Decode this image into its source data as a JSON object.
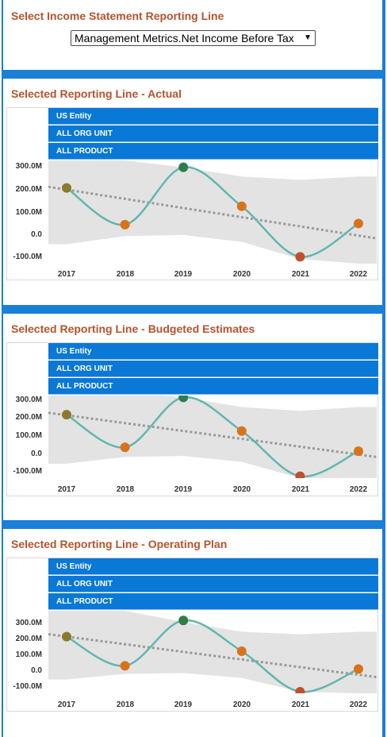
{
  "selector": {
    "title": "Select Income Statement Reporting Line",
    "selected_value": "Management Metrics.Net Income Before Tax"
  },
  "panels": [
    {
      "title": "Selected Reporting Line - Actual",
      "headers": [
        "US Entity",
        "ALL ORG UNIT",
        "ALL PRODUCT"
      ]
    },
    {
      "title": "Selected Reporting Line - Budgeted Estimates",
      "headers": [
        "US Entity",
        "ALL ORG UNIT",
        "ALL PRODUCT"
      ]
    },
    {
      "title": "Selected Reporting Line - Operating Plan",
      "headers": [
        "US Entity",
        "ALL ORG UNIT",
        "ALL PRODUCT"
      ]
    }
  ],
  "chart_data": [
    {
      "type": "line",
      "categories": [
        "2017",
        "2018",
        "2019",
        "2020",
        "2021",
        "2022"
      ],
      "series": [
        {
          "values": [
            200,
            40,
            290,
            120,
            -100,
            45
          ]
        }
      ],
      "yticks": [
        "300.0M",
        "200.0M",
        "100.0M",
        "0.0",
        "-100.0M"
      ],
      "ylim": [
        -130,
        320
      ],
      "trend": [
        205,
        -20
      ],
      "band": {
        "upper": [
          325,
          320,
          290,
          250,
          235,
          250
        ],
        "lower": [
          -45,
          -10,
          -5,
          -35,
          -110,
          -130
        ]
      },
      "point_colors": [
        "#8a7a2e",
        "#d9731a",
        "#2e7d4a",
        "#d9731a",
        "#c0502a",
        "#d9731a"
      ],
      "colors": {
        "line": "#62b6b0",
        "trend": "#9a9a9a",
        "band": "#e3e3e3"
      }
    },
    {
      "type": "line",
      "categories": [
        "2017",
        "2018",
        "2019",
        "2020",
        "2021",
        "2022"
      ],
      "series": [
        {
          "values": [
            210,
            40,
            300,
            125,
            -110,
            20
          ]
        }
      ],
      "yticks": [
        "300.0M",
        "200.0M",
        "100.0M",
        "0.0",
        "-100.0M"
      ],
      "ylim": [
        -120,
        310
      ],
      "trend": [
        220,
        -10
      ],
      "band": {
        "upper": [
          330,
          330,
          300,
          250,
          230,
          250
        ],
        "lower": [
          -45,
          -10,
          -5,
          -35,
          -120,
          -130
        ]
      },
      "point_colors": [
        "#8a7a2e",
        "#d9731a",
        "#2e7d4a",
        "#d9731a",
        "#c0502a",
        "#d9731a"
      ],
      "colors": {
        "line": "#62b6b0",
        "trend": "#9a9a9a",
        "band": "#e3e3e3"
      }
    },
    {
      "type": "line",
      "categories": [
        "2017",
        "2018",
        "2019",
        "2020",
        "2021",
        "2022"
      ],
      "series": [
        {
          "values": [
            220,
            40,
            320,
            130,
            -120,
            20
          ]
        }
      ],
      "yticks": [
        "300.0M",
        "200.0M",
        "100.0M",
        "0.0",
        "-100.0M"
      ],
      "ylim": [
        -130,
        380
      ],
      "trend": [
        235,
        -30
      ],
      "band": {
        "upper": [
          380,
          380,
          310,
          250,
          235,
          250
        ],
        "lower": [
          -45,
          -10,
          -5,
          -35,
          -120,
          -130
        ]
      },
      "point_colors": [
        "#8a7a2e",
        "#d9731a",
        "#2e7d4a",
        "#d9731a",
        "#c0502a",
        "#d9731a"
      ],
      "colors": {
        "line": "#62b6b0",
        "trend": "#9a9a9a",
        "band": "#e3e3e3"
      }
    }
  ]
}
